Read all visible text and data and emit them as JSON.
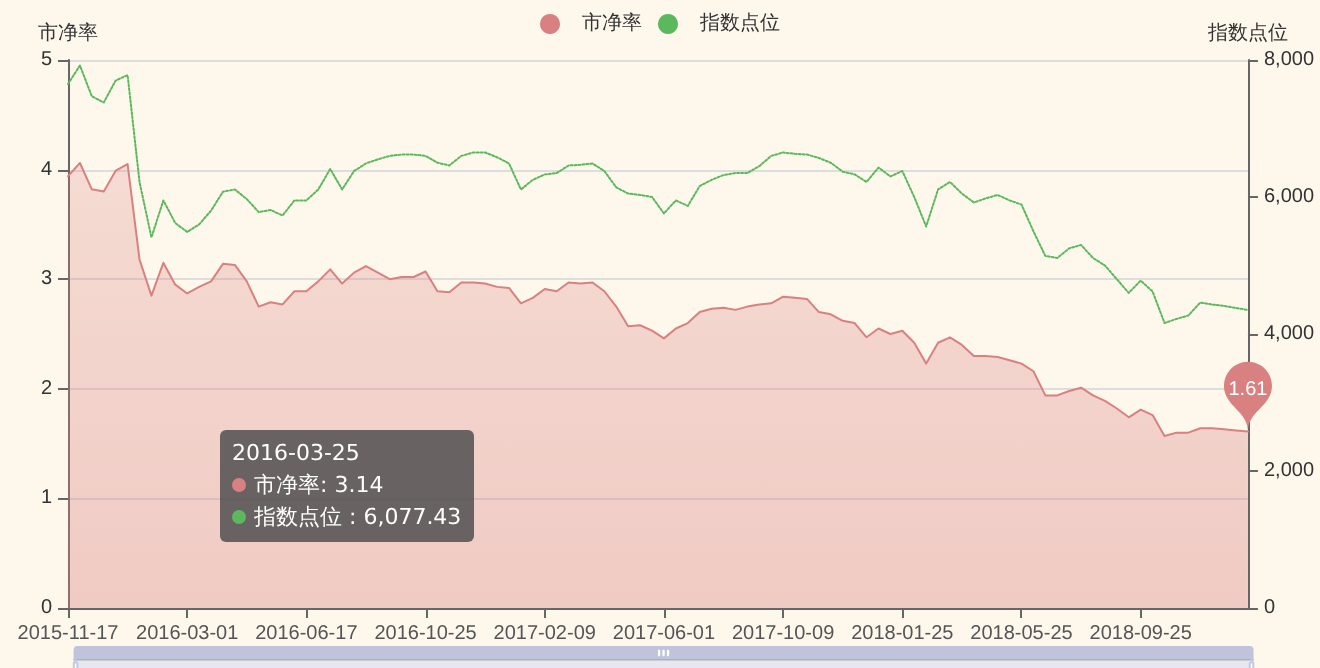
{
  "chart_data": {
    "type": "line",
    "ylabel": "市净率",
    "y2label": "指数点位",
    "categories": [
      "2015-11-17",
      null,
      null,
      null,
      null,
      null,
      null,
      null,
      null,
      null,
      "2016-03-01",
      null,
      null,
      null,
      null,
      null,
      null,
      null,
      null,
      null,
      "2016-06-17",
      null,
      null,
      null,
      null,
      null,
      null,
      null,
      null,
      null,
      "2016-10-25",
      null,
      null,
      null,
      null,
      null,
      null,
      null,
      null,
      null,
      "2017-02-09",
      null,
      null,
      null,
      null,
      null,
      null,
      null,
      null,
      null,
      "2017-06-01",
      null,
      null,
      null,
      null,
      null,
      null,
      null,
      null,
      null,
      "2017-10-09",
      null,
      null,
      null,
      null,
      null,
      null,
      null,
      null,
      null,
      "2018-01-25",
      null,
      null,
      null,
      null,
      null,
      null,
      null,
      null,
      null,
      "2018-05-25",
      null,
      null,
      null,
      null,
      null,
      null,
      null,
      null,
      null,
      "2018-09-25",
      null,
      null,
      null,
      null,
      null,
      null,
      null,
      null,
      null
    ],
    "series": [
      {
        "name": "市净率",
        "type": "area",
        "color": "#d98080",
        "values": [
          3.94,
          4.06,
          3.82,
          3.8,
          3.99,
          4.05,
          3.18,
          2.85,
          3.15,
          2.95,
          2.87,
          2.93,
          2.98,
          3.14,
          3.13,
          2.98,
          2.75,
          2.79,
          2.77,
          2.89,
          2.89,
          2.98,
          3.09,
          2.96,
          3.06,
          3.12,
          3.06,
          3.0,
          3.02,
          3.02,
          3.07,
          2.89,
          2.88,
          2.97,
          2.97,
          2.96,
          2.93,
          2.92,
          2.78,
          2.83,
          2.91,
          2.89,
          2.97,
          2.96,
          2.97,
          2.89,
          2.75,
          2.57,
          2.58,
          2.53,
          2.46,
          2.55,
          2.6,
          2.7,
          2.73,
          2.74,
          2.72,
          2.75,
          2.77,
          2.78,
          2.84,
          2.83,
          2.82,
          2.7,
          2.68,
          2.62,
          2.6,
          2.47,
          2.55,
          2.5,
          2.53,
          2.42,
          2.23,
          2.42,
          2.47,
          2.4,
          2.3,
          2.3,
          2.29,
          2.26,
          2.23,
          2.16,
          1.94,
          1.94,
          1.98,
          2.01,
          1.94,
          1.89,
          1.82,
          1.74,
          1.81,
          1.76,
          1.57,
          1.6,
          1.6,
          1.64,
          1.64,
          1.63,
          1.62,
          1.61
        ],
        "value_labels": [
          null,
          null,
          null,
          null,
          null,
          null,
          null,
          null,
          null,
          null,
          null,
          null,
          null,
          null,
          null,
          null,
          null,
          null,
          null,
          null,
          null,
          null,
          null,
          null,
          null,
          null,
          null,
          null,
          null,
          null,
          null,
          null,
          null,
          null,
          null,
          null,
          null,
          null,
          null,
          null,
          null,
          null,
          null,
          null,
          null,
          null,
          null,
          null,
          null,
          null,
          null,
          null,
          null,
          null,
          null,
          null,
          null,
          null,
          null,
          null,
          null,
          null,
          null,
          null,
          null,
          null,
          null,
          null,
          null,
          null,
          null,
          null,
          null,
          null,
          null,
          null,
          null,
          null,
          null,
          null,
          null,
          null,
          null,
          null,
          null,
          null,
          null,
          null,
          null,
          null,
          null,
          null,
          null,
          null,
          null,
          null,
          null,
          null,
          null,
          "1.61"
        ]
      },
      {
        "name": "指数点位",
        "type": "line",
        "axis": "y2",
        "color": "#5cb85c",
        "line_style": "dotted",
        "values": [
          7650,
          7920,
          7470,
          7380,
          7700,
          7780,
          6220,
          5410,
          5950,
          5620,
          5490,
          5600,
          5800,
          6077.43,
          6110,
          5970,
          5780,
          5810,
          5730,
          5950,
          5950,
          6110,
          6410,
          6110,
          6380,
          6490,
          6550,
          6600,
          6620,
          6620,
          6600,
          6500,
          6460,
          6600,
          6650,
          6650,
          6580,
          6490,
          6110,
          6250,
          6330,
          6350,
          6460,
          6470,
          6490,
          6380,
          6140,
          6050,
          6030,
          6000,
          5760,
          5950,
          5870,
          6160,
          6250,
          6320,
          6350,
          6350,
          6450,
          6600,
          6650,
          6630,
          6620,
          6570,
          6500,
          6370,
          6330,
          6220,
          6430,
          6300,
          6380,
          6000,
          5570,
          6110,
          6220,
          6050,
          5920,
          5980,
          6030,
          5950,
          5890,
          5500,
          5140,
          5110,
          5250,
          5300,
          5110,
          5000,
          4800,
          4600,
          4780,
          4620,
          4160,
          4220,
          4270,
          4460,
          4430,
          4410,
          4380,
          4350
        ]
      }
    ],
    "ylim": [
      0,
      5
    ],
    "yticks": [
      0,
      1,
      2,
      3,
      4,
      5
    ],
    "y2lim": [
      0,
      8000
    ],
    "y2ticks": [
      0,
      {
        "value": 2000,
        "label": "2,000"
      },
      {
        "value": 4000,
        "label": "4,000"
      },
      {
        "value": 6000,
        "label": "6,000"
      },
      {
        "value": 8000,
        "label": "8,000"
      }
    ],
    "annotations": [
      "2016-03-25",
      "市净率: 3.14",
      "指数点位 : 6,077.43"
    ],
    "grid": "y",
    "legend": "top",
    "marker": "none"
  }
}
